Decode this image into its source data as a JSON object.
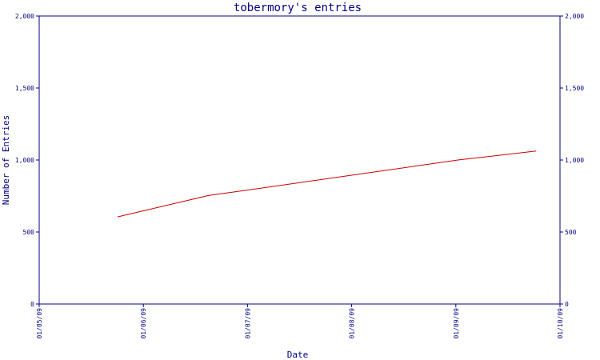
{
  "chart_data": {
    "type": "line",
    "title": "tobermory's entries",
    "xlabel": "Date",
    "ylabel": "Number of Entries",
    "x_ticks": [
      "01/05/09",
      "01/06/09",
      "01/07/09",
      "01/08/09",
      "01/09/09",
      "01/10/09"
    ],
    "xlim": [
      "2009-05-01",
      "2009-10-01"
    ],
    "y_ticks": [
      "0",
      "500",
      "1,000",
      "1,500",
      "2,000"
    ],
    "y_tick_values": [
      0,
      500,
      1000,
      1500,
      2000
    ],
    "ylim": [
      0,
      2000
    ],
    "grid": false,
    "secondary_y_axis": true,
    "series": [
      {
        "color": "#cc0000",
        "x": [
          "2009-05-24",
          "2009-06-20",
          "2009-07-01",
          "2009-08-01",
          "2009-09-01",
          "2009-09-24"
        ],
        "y": [
          605,
          755,
          790,
          895,
          1000,
          1062
        ]
      }
    ]
  }
}
